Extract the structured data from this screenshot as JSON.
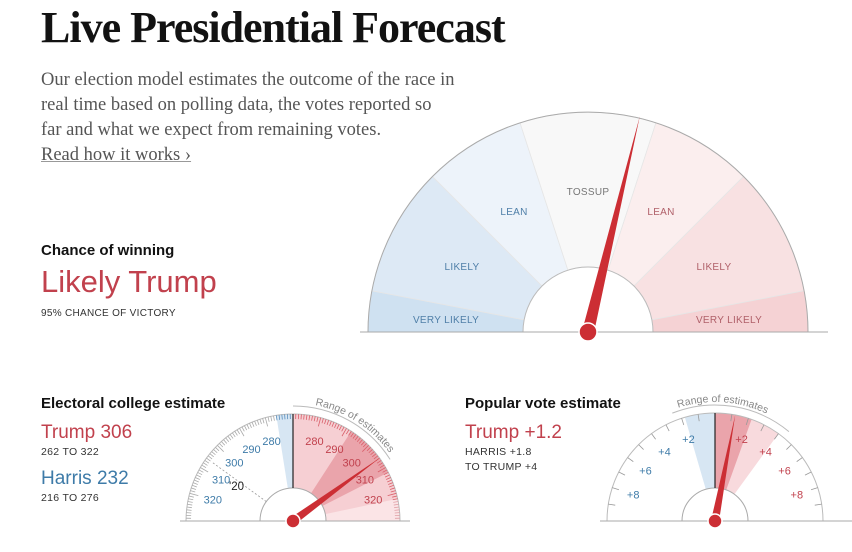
{
  "header": {
    "title": "Live Presidential Forecast",
    "intro": "Our election model estimates the outcome of the race in real time based on polling data, the votes reported so far and what we expect from remaining votes.",
    "intro_lines": [
      "Our election model estimates the outcome of the race in",
      "real time based on polling data, the votes reported so",
      "far and what we expect from remaining votes."
    ],
    "read_link": "Read how it works ›"
  },
  "chance": {
    "heading": "Chance of winning",
    "verdict": "Likely Trump",
    "detail": "95% CHANCE OF VICTORY",
    "probability_trump": 0.95,
    "segments": [
      {
        "label": "VERY LIKELY",
        "side": "dem",
        "color": "#cfe1f1"
      },
      {
        "label": "LIKELY",
        "side": "dem",
        "color": "#dde9f5"
      },
      {
        "label": "LEAN",
        "side": "dem",
        "color": "#edf3fa"
      },
      {
        "label": "TOSSUP",
        "side": "none",
        "color": "#f8f8f8"
      },
      {
        "label": "LEAN",
        "side": "rep",
        "color": "#fbeeee"
      },
      {
        "label": "LIKELY",
        "side": "rep",
        "color": "#f8e1e2"
      },
      {
        "label": "VERY LIKELY",
        "side": "rep",
        "color": "#f5d2d4"
      }
    ]
  },
  "electoral": {
    "heading": "Electoral college estimate",
    "trump_label": "Trump 306",
    "trump_range": "262 TO 322",
    "harris_label": "Harris 232",
    "harris_range": "216 TO 276",
    "range_caption": "Range of estimates",
    "marker_2020": "'20",
    "ticks_dem": [
      "280",
      "290",
      "300",
      "310",
      "320"
    ],
    "ticks_rep": [
      "280",
      "290",
      "300",
      "310",
      "320"
    ],
    "trump_value": 306
  },
  "popular": {
    "heading": "Popular vote estimate",
    "trump_label": "Trump +1.2",
    "range_line1": "HARRIS +1.8",
    "range_line2": "TO TRUMP +4",
    "range_caption": "Range of estimates",
    "ticks_dem": [
      "+2",
      "+4",
      "+6",
      "+8"
    ],
    "ticks_rep": [
      "+2",
      "+4",
      "+6",
      "+8"
    ],
    "trump_margin": 1.2
  },
  "colors": {
    "rep": "#c1414d",
    "dem": "#3e7ba8",
    "needle": "#cc2e34",
    "axis": "#999999"
  }
}
